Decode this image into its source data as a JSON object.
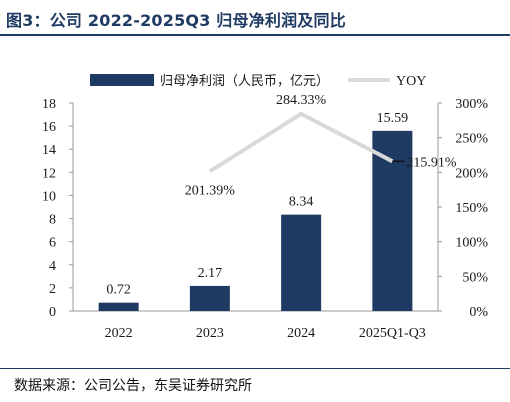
{
  "header": {
    "title": "图3：公司 2022-2025Q3 归母净利润及同比"
  },
  "footer": {
    "source": "数据来源：公司公告，东吴证券研究所"
  },
  "colors": {
    "bar": "#1f3b63",
    "line": "#d9d9d9",
    "title": "#1f3b63"
  },
  "chart_data": {
    "type": "bar",
    "categories": [
      "2022",
      "2023",
      "2024",
      "2025Q1-Q3"
    ],
    "series": [
      {
        "name": "归母净利润（人民币，亿元）",
        "type": "bar",
        "axis": "left",
        "values": [
          0.72,
          2.17,
          8.34,
          15.59
        ],
        "labels": [
          "0.72",
          "2.17",
          "8.34",
          "15.59"
        ]
      },
      {
        "name": "YOY",
        "type": "line",
        "axis": "right",
        "values": [
          null,
          201.39,
          284.33,
          215.91
        ],
        "labels": [
          "",
          "201.39%",
          "284.33%",
          "215.91%"
        ]
      }
    ],
    "y_left": {
      "min": 0,
      "max": 18,
      "ticks": [
        "0",
        "2",
        "4",
        "6",
        "8",
        "10",
        "12",
        "14",
        "16",
        "18"
      ]
    },
    "y_right": {
      "min": 0,
      "max": 300,
      "ticks": [
        "0%",
        "50%",
        "100%",
        "150%",
        "200%",
        "250%",
        "300%"
      ]
    },
    "legend": "top"
  }
}
